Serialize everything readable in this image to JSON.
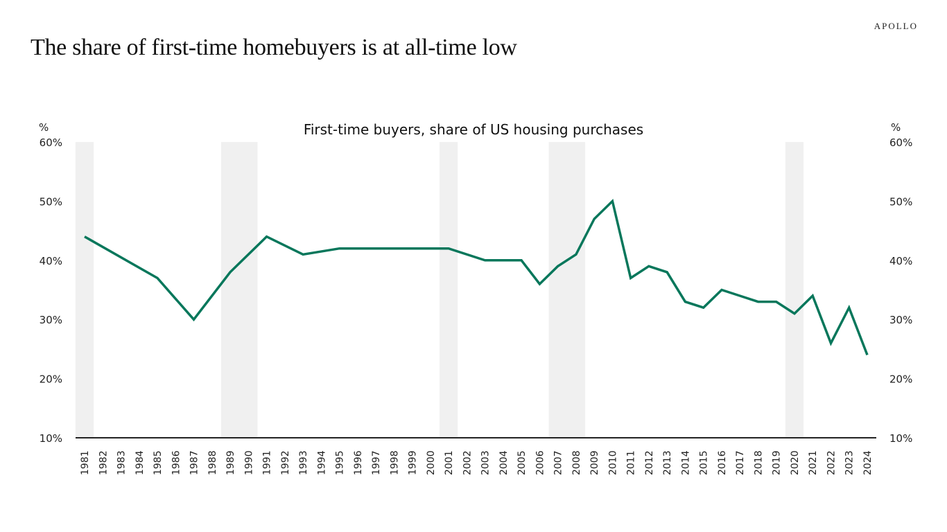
{
  "brand": "APOLLO",
  "headline": "The share of  first-time homebuyers is at all-time low",
  "colors": {
    "line": "#08775b",
    "recession": "#f0f0f0",
    "axis": "#222222"
  },
  "chart_data": {
    "type": "line",
    "title": "First-time buyers, share of US housing purchases",
    "xlabel": "",
    "ylabel_left": "%",
    "ylabel_right": "%",
    "ylim": [
      10,
      60
    ],
    "yticks": [
      "10%",
      "20%",
      "30%",
      "40%",
      "50%",
      "60%"
    ],
    "grid": false,
    "legend": null,
    "categories": [
      "1981",
      "1982",
      "1983",
      "1984",
      "1985",
      "1986",
      "1987",
      "1988",
      "1989",
      "1990",
      "1991",
      "1992",
      "1993",
      "1994",
      "1995",
      "1996",
      "1997",
      "1998",
      "1999",
      "2000",
      "2001",
      "2002",
      "2003",
      "2004",
      "2005",
      "2006",
      "2007",
      "2008",
      "2009",
      "2010",
      "2011",
      "2012",
      "2013",
      "2014",
      "2015",
      "2016",
      "2017",
      "2018",
      "2019",
      "2020",
      "2021",
      "2022",
      "2023",
      "2024"
    ],
    "series": [
      {
        "name": "First-time buyers share",
        "values": [
          44,
          null,
          null,
          null,
          37,
          null,
          30,
          null,
          38,
          null,
          44,
          null,
          41,
          null,
          42,
          42,
          42,
          42,
          42,
          42,
          42,
          null,
          40,
          40,
          40,
          36,
          39,
          41,
          47,
          50,
          37,
          39,
          38,
          33,
          32,
          35,
          34,
          33,
          33,
          31,
          34,
          26,
          32,
          24
        ]
      }
    ],
    "recession_shading": [
      [
        "1981",
        "1981"
      ],
      [
        "1989",
        "1990"
      ],
      [
        "2001",
        "2001"
      ],
      [
        "2007",
        "2008"
      ],
      [
        "2020",
        "2020"
      ]
    ]
  }
}
